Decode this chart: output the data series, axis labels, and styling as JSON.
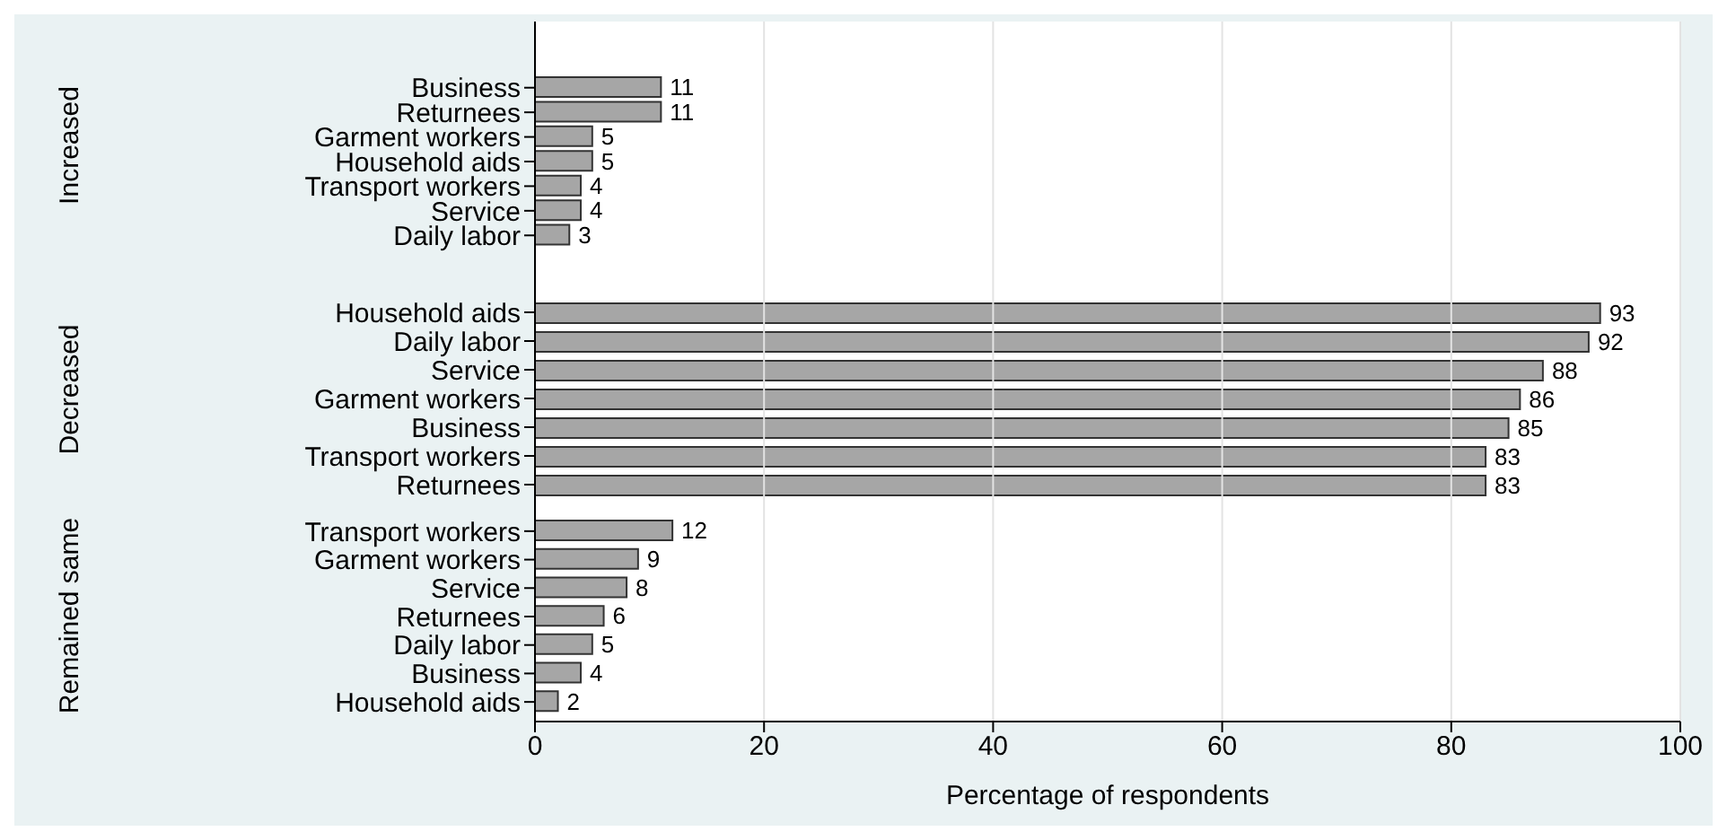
{
  "chart_data": [
    {
      "type": "bar",
      "orientation": "horizontal",
      "ylabel": "Increased",
      "categories": [
        "Business",
        "Returnees",
        "Garment workers",
        "Household aids",
        "Transport workers",
        "Service",
        "Daily labor"
      ],
      "values": [
        11,
        11,
        5,
        5,
        4,
        4,
        3
      ],
      "color": "#a6a6a6",
      "xlim": [
        0,
        100
      ],
      "xticks": [
        0,
        20,
        40,
        60,
        80,
        100
      ],
      "grid": "x",
      "data_labels": true,
      "tick_labels": "y"
    },
    {
      "type": "bar",
      "orientation": "horizontal",
      "ylabel": "Decreased",
      "categories": [
        "Household aids",
        "Daily labor",
        "Service",
        "Garment workers",
        "Business",
        "Transport workers",
        "Returnees"
      ],
      "values": [
        93,
        92,
        88,
        86,
        85,
        83,
        83
      ],
      "color": "#a6a6a6",
      "xlim": [
        0,
        100
      ],
      "xticks": [
        0,
        20,
        40,
        60,
        80,
        100
      ],
      "grid": "x",
      "data_labels": true,
      "tick_labels": "y"
    },
    {
      "type": "bar",
      "orientation": "horizontal",
      "ylabel": "Remained same",
      "xlabel": "Percentage of respondents",
      "categories": [
        "Transport workers",
        "Garment workers",
        "Service",
        "Returnees",
        "Daily labor",
        "Business",
        "Household aids"
      ],
      "values": [
        12,
        9,
        8,
        6,
        5,
        4,
        2
      ],
      "color": "#a6a6a6",
      "xlim": [
        0,
        100
      ],
      "xticks": [
        0,
        20,
        40,
        60,
        80,
        100
      ],
      "grid": "x",
      "data_labels": true
    }
  ]
}
